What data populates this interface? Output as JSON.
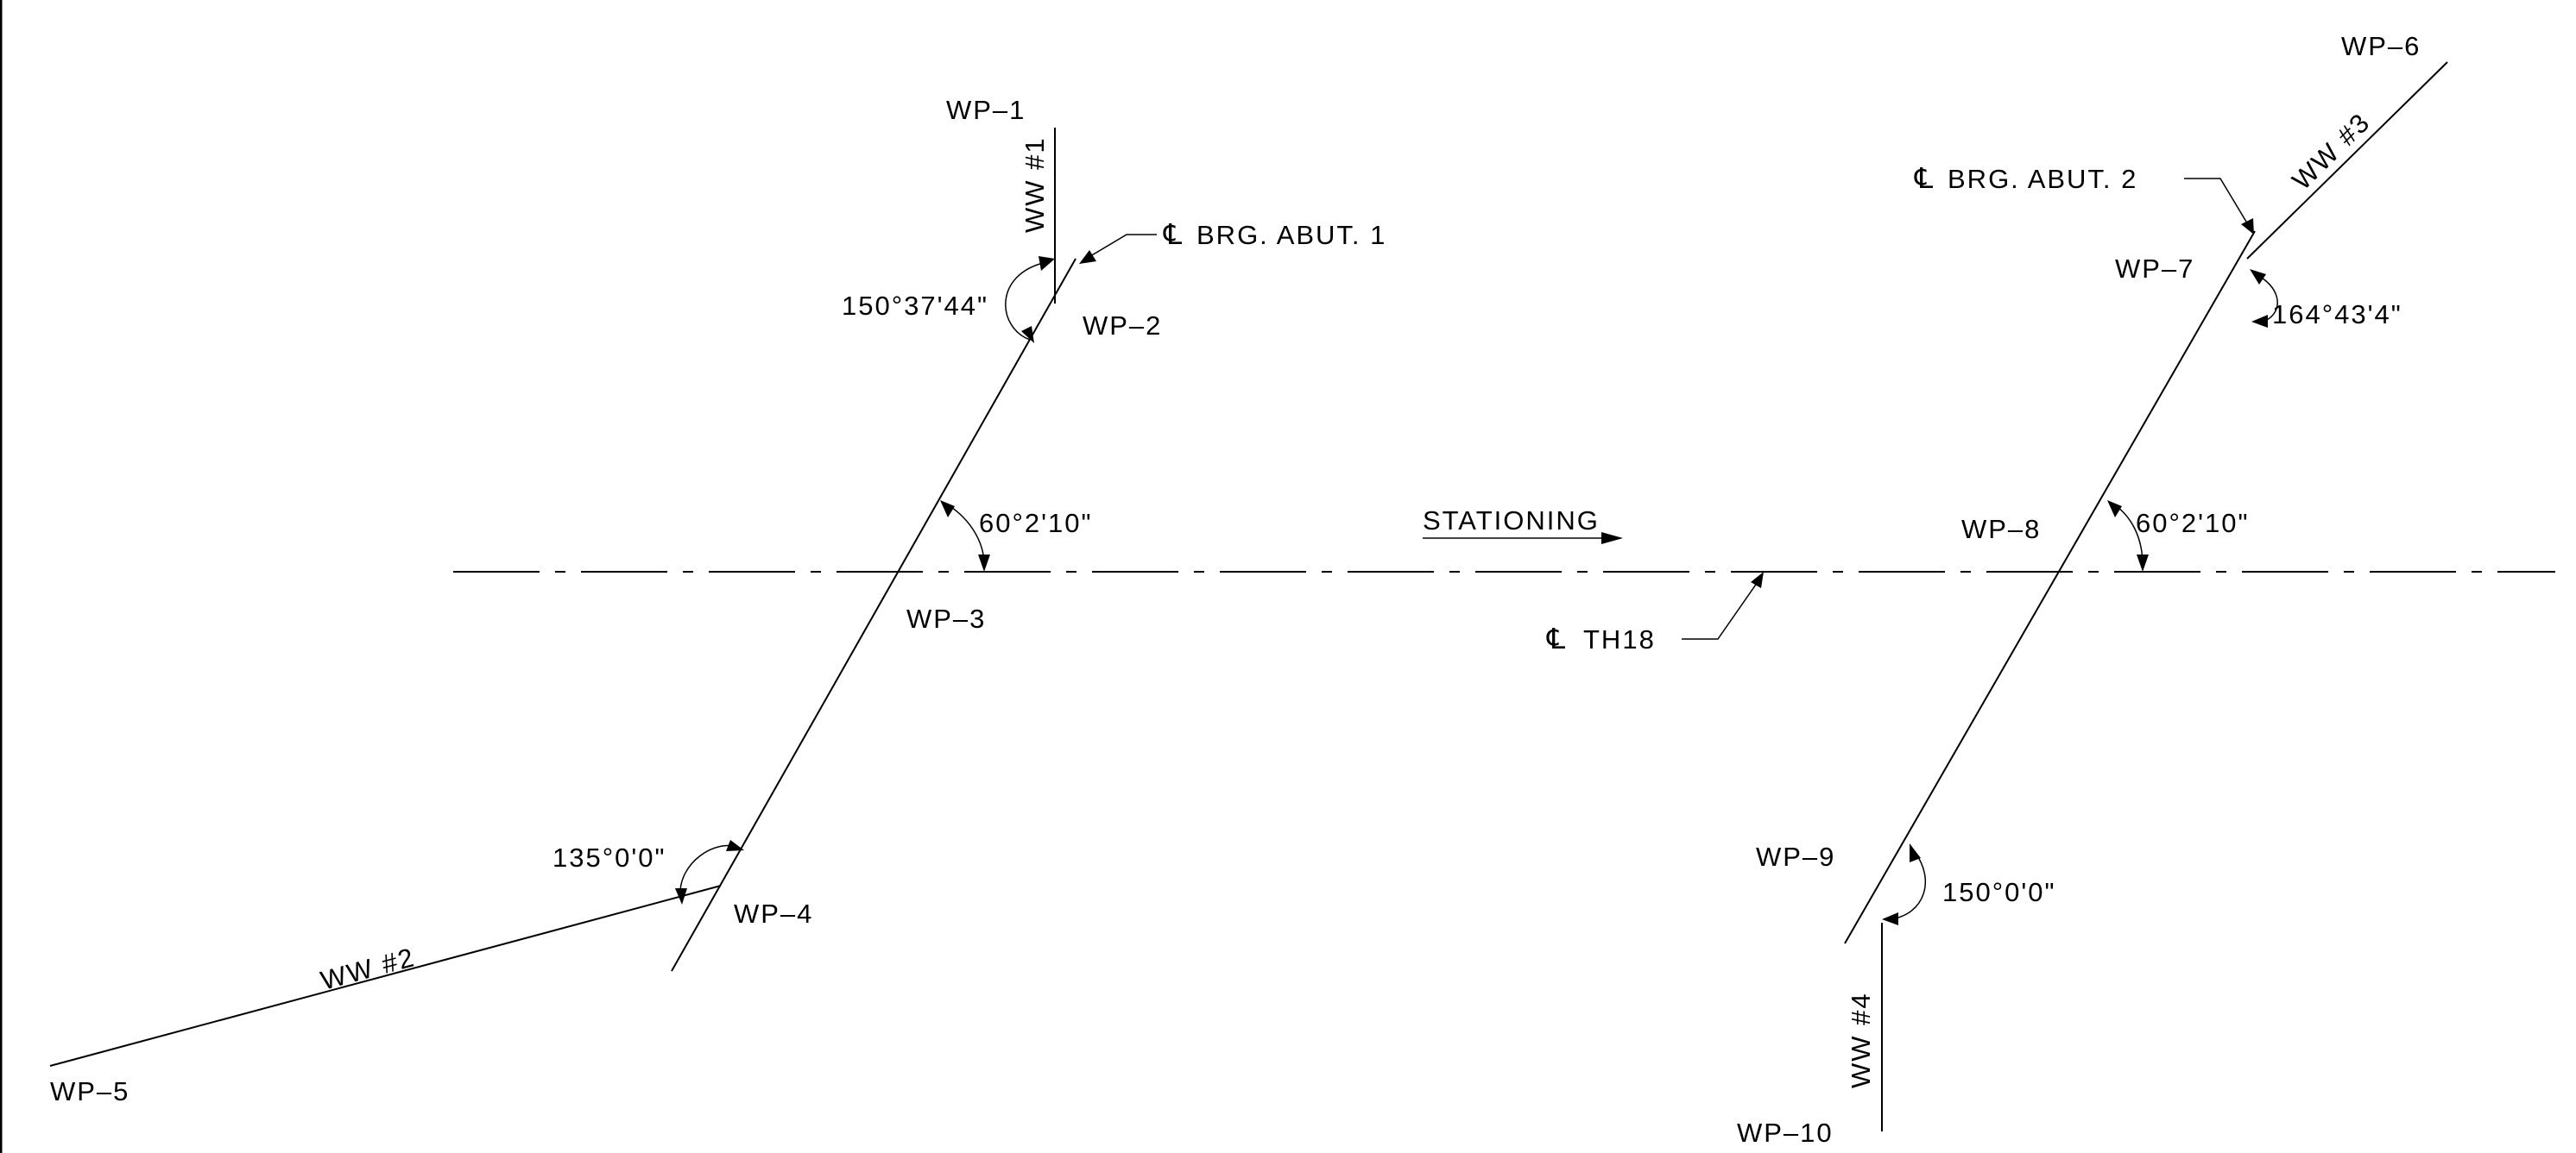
{
  "labels": {
    "wp1": "WP–1",
    "wp2": "WP–2",
    "wp3": "WP–3",
    "wp4": "WP–4",
    "wp5": "WP–5",
    "wp6": "WP–6",
    "wp7": "WP–7",
    "wp8": "WP–8",
    "wp9": "WP–9",
    "wp10": "WP–10"
  },
  "wingwalls": {
    "ww1": "WW #1",
    "ww2": "WW #2",
    "ww3": "WW #3",
    "ww4": "WW #4"
  },
  "angles": {
    "a_wp2": "150°37'44\"",
    "a_wp3": "60°2'10\"",
    "a_wp4": "135°0'0\"",
    "a_wp7": "164°43'4\"",
    "a_wp8": "60°2'10\"",
    "a_wp9": "150°0'0\""
  },
  "callouts": {
    "abut1": "BRG. ABUT. 1",
    "abut2": "BRG. ABUT. 2",
    "th18": "TH18",
    "stationing": "STATIONING",
    "centerline_symbol": "℄"
  }
}
